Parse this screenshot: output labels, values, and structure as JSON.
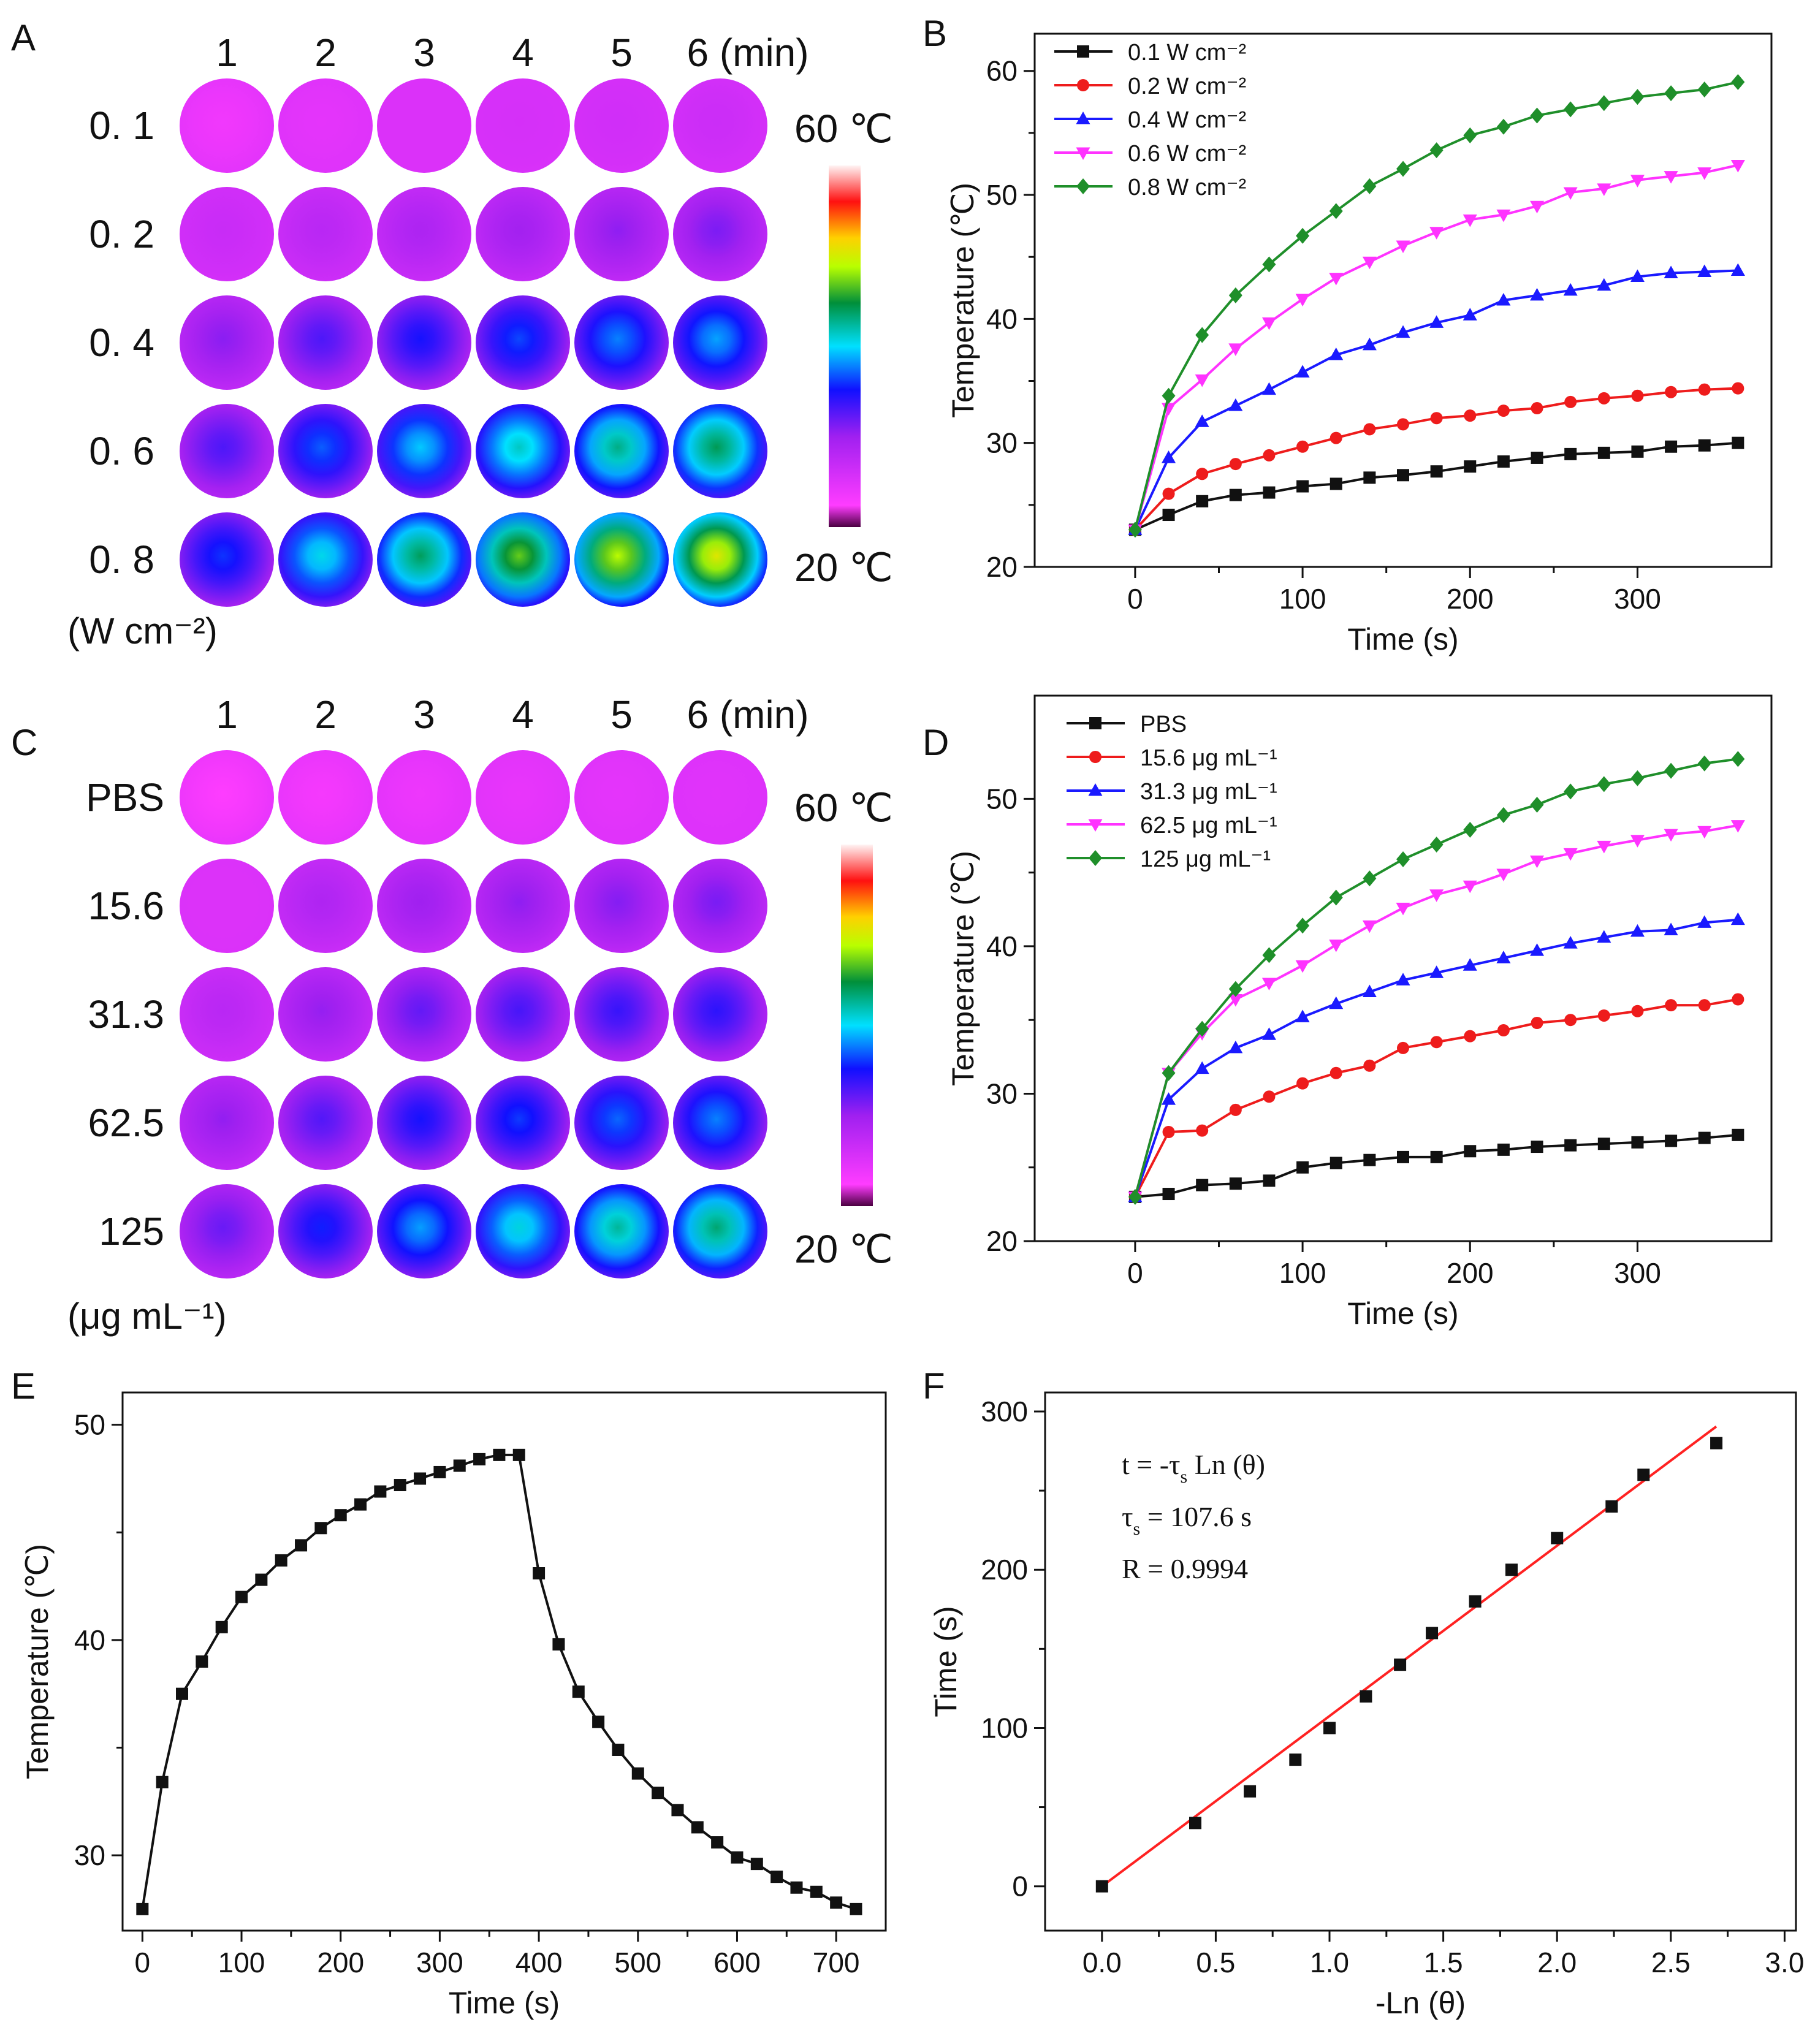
{
  "colors": {
    "black": "#111111",
    "red": "#ee1c1c",
    "blue": "#1a1aff",
    "magenta": "#ff33ff",
    "green": "#1f8f2a",
    "fit_red": "#ff2222",
    "thermal_bg": "#ff3cff"
  },
  "thermal": {
    "units": {
      "deg": "°C"
    },
    "panels": [
      {
        "letter": "A",
        "col_labels": [
          "1",
          "2",
          "3",
          "4",
          "5",
          "6 (min)"
        ],
        "row_labels": [
          "0. 1",
          "0. 2",
          "0. 4",
          "0. 6",
          "0. 8"
        ],
        "unit_label": "(W cm⁻²)",
        "scale_max": "60 ℃",
        "scale_min": "20 ℃",
        "temperatures": [
          [
            23.5,
            24.5,
            25.3,
            25.8,
            26.2,
            26.6
          ],
          [
            26.8,
            28.0,
            29.0,
            29.8,
            30.6,
            31.3
          ],
          [
            30.8,
            33.0,
            35.0,
            36.5,
            37.8,
            38.6
          ],
          [
            33.0,
            37.0,
            39.5,
            41.5,
            43.0,
            44.2
          ],
          [
            36.0,
            40.5,
            44.0,
            47.0,
            49.0,
            50.5
          ]
        ]
      },
      {
        "letter": "C",
        "col_labels": [
          "1",
          "2",
          "3",
          "4",
          "5",
          "6 (min)"
        ],
        "row_labels": [
          "PBS",
          "15.6",
          "31.3",
          "62.5",
          "125"
        ],
        "unit_label": "(μg mL⁻¹)",
        "scale_max": "60 ℃",
        "scale_min": "20 ℃",
        "temperatures": [
          [
            22.5,
            23.2,
            23.8,
            24.2,
            24.5,
            24.8
          ],
          [
            25.2,
            28.8,
            30.0,
            30.6,
            31.0,
            31.4
          ],
          [
            28.0,
            30.4,
            32.2,
            33.2,
            33.8,
            34.2
          ],
          [
            30.5,
            32.8,
            35.0,
            36.2,
            37.2,
            37.8
          ],
          [
            32.0,
            35.5,
            38.5,
            40.8,
            42.5,
            43.5
          ]
        ]
      }
    ]
  },
  "chart_data": [
    {
      "letter": "B",
      "type": "line",
      "xlabel": "Time (s)",
      "ylabel": "Temperature (℃)",
      "xlim": [
        -60,
        380
      ],
      "ylim": [
        20,
        63
      ],
      "xticks": [
        0,
        100,
        200,
        300
      ],
      "yticks": [
        20,
        30,
        40,
        50,
        60
      ],
      "legend": "top-left",
      "x": [
        0,
        20,
        40,
        60,
        80,
        100,
        120,
        140,
        160,
        180,
        200,
        220,
        240,
        260,
        280,
        300,
        320,
        340,
        360
      ],
      "series": [
        {
          "name": "0.1 W cm⁻²",
          "color": "black",
          "marker": "square",
          "values": [
            23.0,
            24.2,
            25.3,
            25.8,
            26.0,
            26.5,
            26.7,
            27.2,
            27.4,
            27.7,
            28.1,
            28.5,
            28.8,
            29.1,
            29.2,
            29.3,
            29.7,
            29.8,
            30.0
          ]
        },
        {
          "name": "0.2 W cm⁻²",
          "color": "red",
          "marker": "circle",
          "values": [
            23.0,
            25.9,
            27.5,
            28.3,
            29.0,
            29.7,
            30.4,
            31.1,
            31.5,
            32.0,
            32.2,
            32.6,
            32.8,
            33.3,
            33.6,
            33.8,
            34.1,
            34.3,
            34.4
          ]
        },
        {
          "name": "0.4 W cm⁻²",
          "color": "blue",
          "marker": "triangle-up",
          "values": [
            23.0,
            28.8,
            31.7,
            33.0,
            34.3,
            35.7,
            37.1,
            37.9,
            38.9,
            39.7,
            40.3,
            41.5,
            41.9,
            42.3,
            42.7,
            43.4,
            43.7,
            43.8,
            43.9
          ]
        },
        {
          "name": "0.6 W cm⁻²",
          "color": "magenta",
          "marker": "triangle-down",
          "values": [
            23.0,
            32.8,
            35.1,
            37.6,
            39.7,
            41.6,
            43.3,
            44.6,
            45.9,
            47.0,
            48.0,
            48.4,
            49.1,
            50.2,
            50.5,
            51.2,
            51.5,
            51.8,
            52.4
          ]
        },
        {
          "name": "0.8 W cm⁻²",
          "color": "green",
          "marker": "diamond",
          "values": [
            23.0,
            33.8,
            38.7,
            41.9,
            44.4,
            46.7,
            48.7,
            50.7,
            52.1,
            53.6,
            54.8,
            55.5,
            56.4,
            56.9,
            57.4,
            57.9,
            58.2,
            58.5,
            59.1
          ]
        }
      ]
    },
    {
      "letter": "D",
      "type": "line",
      "xlabel": "Time (s)",
      "ylabel": "Temperature (℃)",
      "xlim": [
        -60,
        380
      ],
      "ylim": [
        20,
        57
      ],
      "xticks": [
        0,
        100,
        200,
        300
      ],
      "yticks": [
        20,
        30,
        40,
        50
      ],
      "legend": "top-left",
      "x": [
        0,
        20,
        40,
        60,
        80,
        100,
        120,
        140,
        160,
        180,
        200,
        220,
        240,
        260,
        280,
        300,
        320,
        340,
        360
      ],
      "series": [
        {
          "name": "PBS",
          "color": "black",
          "marker": "square",
          "values": [
            23.0,
            23.2,
            23.8,
            23.9,
            24.1,
            25.0,
            25.3,
            25.5,
            25.7,
            25.7,
            26.1,
            26.2,
            26.4,
            26.5,
            26.6,
            26.7,
            26.8,
            27.0,
            27.2
          ]
        },
        {
          "name": "15.6 μg mL⁻¹",
          "color": "red",
          "marker": "circle",
          "values": [
            23.0,
            27.4,
            27.5,
            28.9,
            29.8,
            30.7,
            31.4,
            31.9,
            33.1,
            33.5,
            33.9,
            34.3,
            34.8,
            35.0,
            35.3,
            35.6,
            36.0,
            36.0,
            36.4
          ]
        },
        {
          "name": "31.3 μg mL⁻¹",
          "color": "blue",
          "marker": "triangle-up",
          "values": [
            23.0,
            29.6,
            31.7,
            33.1,
            34.0,
            35.2,
            36.1,
            36.9,
            37.7,
            38.2,
            38.7,
            39.2,
            39.7,
            40.2,
            40.6,
            41.0,
            41.1,
            41.6,
            41.8
          ]
        },
        {
          "name": "62.5 μg mL⁻¹",
          "color": "magenta",
          "marker": "triangle-down",
          "values": [
            23.0,
            31.4,
            34.1,
            36.4,
            37.5,
            38.7,
            40.1,
            41.4,
            42.6,
            43.5,
            44.1,
            44.9,
            45.8,
            46.3,
            46.8,
            47.2,
            47.6,
            47.8,
            48.2
          ]
        },
        {
          "name": "125 μg mL⁻¹",
          "color": "green",
          "marker": "diamond",
          "values": [
            23.0,
            31.4,
            34.4,
            37.1,
            39.4,
            41.4,
            43.3,
            44.6,
            45.9,
            46.9,
            47.9,
            48.9,
            49.6,
            50.5,
            51.0,
            51.4,
            51.9,
            52.4,
            52.7
          ]
        }
      ]
    },
    {
      "letter": "E",
      "type": "line",
      "xlabel": "Time (s)",
      "ylabel": "Temperature (℃)",
      "xlim": [
        -20,
        750
      ],
      "ylim": [
        26.5,
        51.5
      ],
      "xticks": [
        0,
        100,
        200,
        300,
        400,
        500,
        600,
        700
      ],
      "yticks": [
        30,
        40,
        50
      ],
      "x": [
        0,
        20,
        40,
        60,
        80,
        100,
        120,
        140,
        160,
        180,
        200,
        220,
        240,
        260,
        280,
        300,
        320,
        340,
        360,
        380,
        400,
        420,
        440,
        460,
        480,
        500,
        520,
        540,
        560,
        580,
        600,
        620,
        640,
        660,
        680,
        700,
        720
      ],
      "series": [
        {
          "color": "black",
          "marker": "square",
          "values": [
            27.5,
            33.4,
            37.5,
            39.0,
            40.6,
            42.0,
            42.8,
            43.7,
            44.4,
            45.2,
            45.8,
            46.3,
            46.9,
            47.2,
            47.5,
            47.8,
            48.1,
            48.4,
            48.6,
            48.6,
            43.1,
            39.8,
            37.6,
            36.2,
            34.9,
            33.8,
            32.9,
            32.1,
            31.3,
            30.6,
            29.9,
            29.6,
            29.0,
            28.5,
            28.3,
            27.8,
            27.5
          ]
        }
      ]
    },
    {
      "letter": "F",
      "type": "scatter",
      "xlabel": "-Ln (θ)",
      "ylabel": "Time (s)",
      "xlim": [
        -0.25,
        3.05
      ],
      "ylim": [
        -28,
        312
      ],
      "xticks": [
        0.0,
        0.5,
        1.0,
        1.5,
        2.0,
        2.5,
        3.0
      ],
      "yticks": [
        0,
        100,
        200,
        300
      ],
      "annotations": [
        "t = -τ",
        "s",
        " Ln (θ)",
        "τ",
        "s",
        " = 107.6 s",
        "R = 0.9994"
      ],
      "x": [
        0.0,
        0.41,
        0.65,
        0.85,
        1.0,
        1.16,
        1.31,
        1.45,
        1.64,
        1.8,
        2.0,
        2.24,
        2.38,
        2.7
      ],
      "series": [
        {
          "color": "black",
          "marker": "square",
          "values": [
            0,
            40,
            60,
            80,
            100,
            120,
            140,
            160,
            180,
            200,
            220,
            240,
            260,
            280
          ]
        }
      ],
      "fit": {
        "color": "fit_red",
        "slope": 107.6,
        "intercept": 0,
        "x_range": [
          0.0,
          2.7
        ]
      }
    }
  ]
}
